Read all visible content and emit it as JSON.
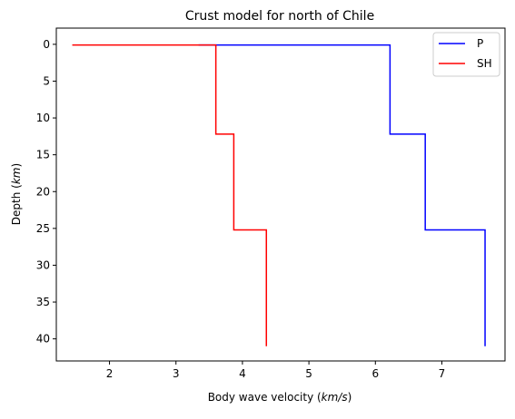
{
  "chart_data": {
    "type": "line",
    "title": "Crust model for north of Chile",
    "xlabel": "Body wave velocity (km/s)",
    "ylabel": "Depth (km)",
    "xlim": [
      1.2,
      7.95
    ],
    "ylim": [
      43,
      -2.2
    ],
    "y_inverted": true,
    "grid": false,
    "legend_position": "top-right",
    "x_ticks": [
      2,
      3,
      4,
      5,
      6,
      7
    ],
    "y_ticks": [
      0,
      5,
      10,
      15,
      20,
      25,
      30,
      35,
      40
    ],
    "series": [
      {
        "name": "P",
        "color": "#0000ff",
        "points": [
          [
            3.35,
            0.0
          ],
          [
            3.35,
            0.1
          ],
          [
            6.22,
            0.1
          ],
          [
            6.22,
            12.2
          ],
          [
            6.75,
            12.2
          ],
          [
            6.75,
            25.2
          ],
          [
            7.65,
            25.2
          ],
          [
            7.65,
            41.0
          ]
        ]
      },
      {
        "name": "SH",
        "color": "#ff0000",
        "points": [
          [
            1.45,
            0.0
          ],
          [
            1.45,
            0.1
          ],
          [
            3.6,
            0.1
          ],
          [
            3.6,
            12.2
          ],
          [
            3.87,
            12.2
          ],
          [
            3.87,
            25.2
          ],
          [
            4.36,
            25.2
          ],
          [
            4.36,
            41.0
          ]
        ]
      }
    ]
  }
}
